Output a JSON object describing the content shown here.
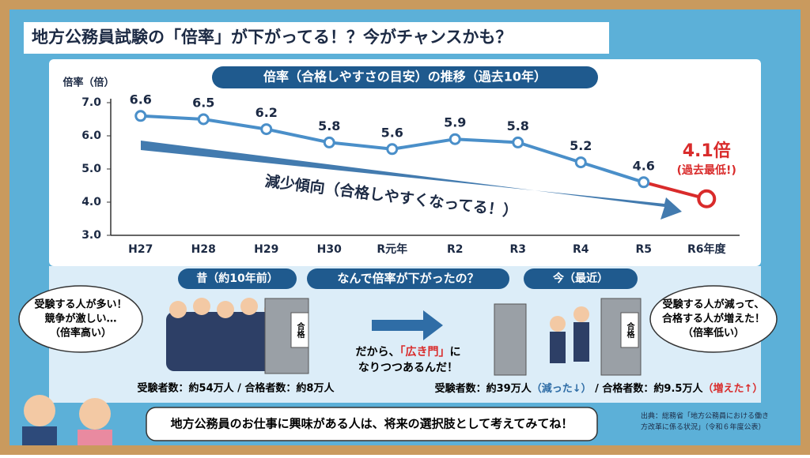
{
  "header": {
    "title": "地方公務員試験の「倍率」が下がってる！？今がチャンスかも？"
  },
  "chart_data": {
    "type": "line",
    "title": "倍率（合格しやすさの目安）の推移（過去10年）",
    "y_label": "倍率（倍）",
    "categories": [
      "H27",
      "H28",
      "H29",
      "H30",
      "R元年",
      "R2",
      "R3",
      "R4",
      "R5",
      "R6年度"
    ],
    "values": [
      6.6,
      6.5,
      6.2,
      5.8,
      5.6,
      5.9,
      5.8,
      5.2,
      4.6,
      4.1
    ],
    "value_labels": [
      "6.6",
      "6.5",
      "6.2",
      "5.8",
      "5.6",
      "5.9",
      "5.8",
      "5.2",
      "4.6",
      "4.1倍"
    ],
    "color": "#4a8fc9",
    "highlight_color": "#d92b2b",
    "ylim": [
      3,
      7
    ],
    "yticks": [
      {
        "value": 3,
        "label": "3.0"
      },
      {
        "value": 4,
        "label": "4.0"
      },
      {
        "value": 5,
        "label": "5.0"
      },
      {
        "value": 6,
        "label": "6.0"
      },
      {
        "value": 7,
        "label": "7.0"
      }
    ],
    "annotations": {
      "lowest": "(過去最低!)",
      "trend": "減少傾向（合格しやすくなってる！）"
    }
  },
  "comparison": {
    "past_label": "昔（約10年前）",
    "question": "なんで倍率が下がったの？",
    "now_label": "今（最近）",
    "past_bubble": [
      "受験する人が多い！",
      "競争が激しい…",
      "（倍率高い）"
    ],
    "now_bubble": [
      "受験する人が減って、",
      "合格する人が増えた！",
      "（倍率低い）"
    ],
    "gate_sign": "合格",
    "conclusion": {
      "line1": [
        "だから、",
        "「広き門」",
        "に"
      ],
      "line2": "なりつつあるんだ！"
    },
    "past_stats": "受験者数：約54万人 / 合格者数：約8万人",
    "now_stats": [
      "受験者数：約39万人",
      "（減った↓）",
      " / 合格者数：約9.5万人",
      "（増えた↑）"
    ]
  },
  "footer": {
    "message": "地方公務員のお仕事に興味がある人は、将来の選択肢として考えてみてね！",
    "source": [
      "出典：総務省「地方公務員における働き",
      "方改革に係る状況」（令和６年度公表）"
    ]
  }
}
